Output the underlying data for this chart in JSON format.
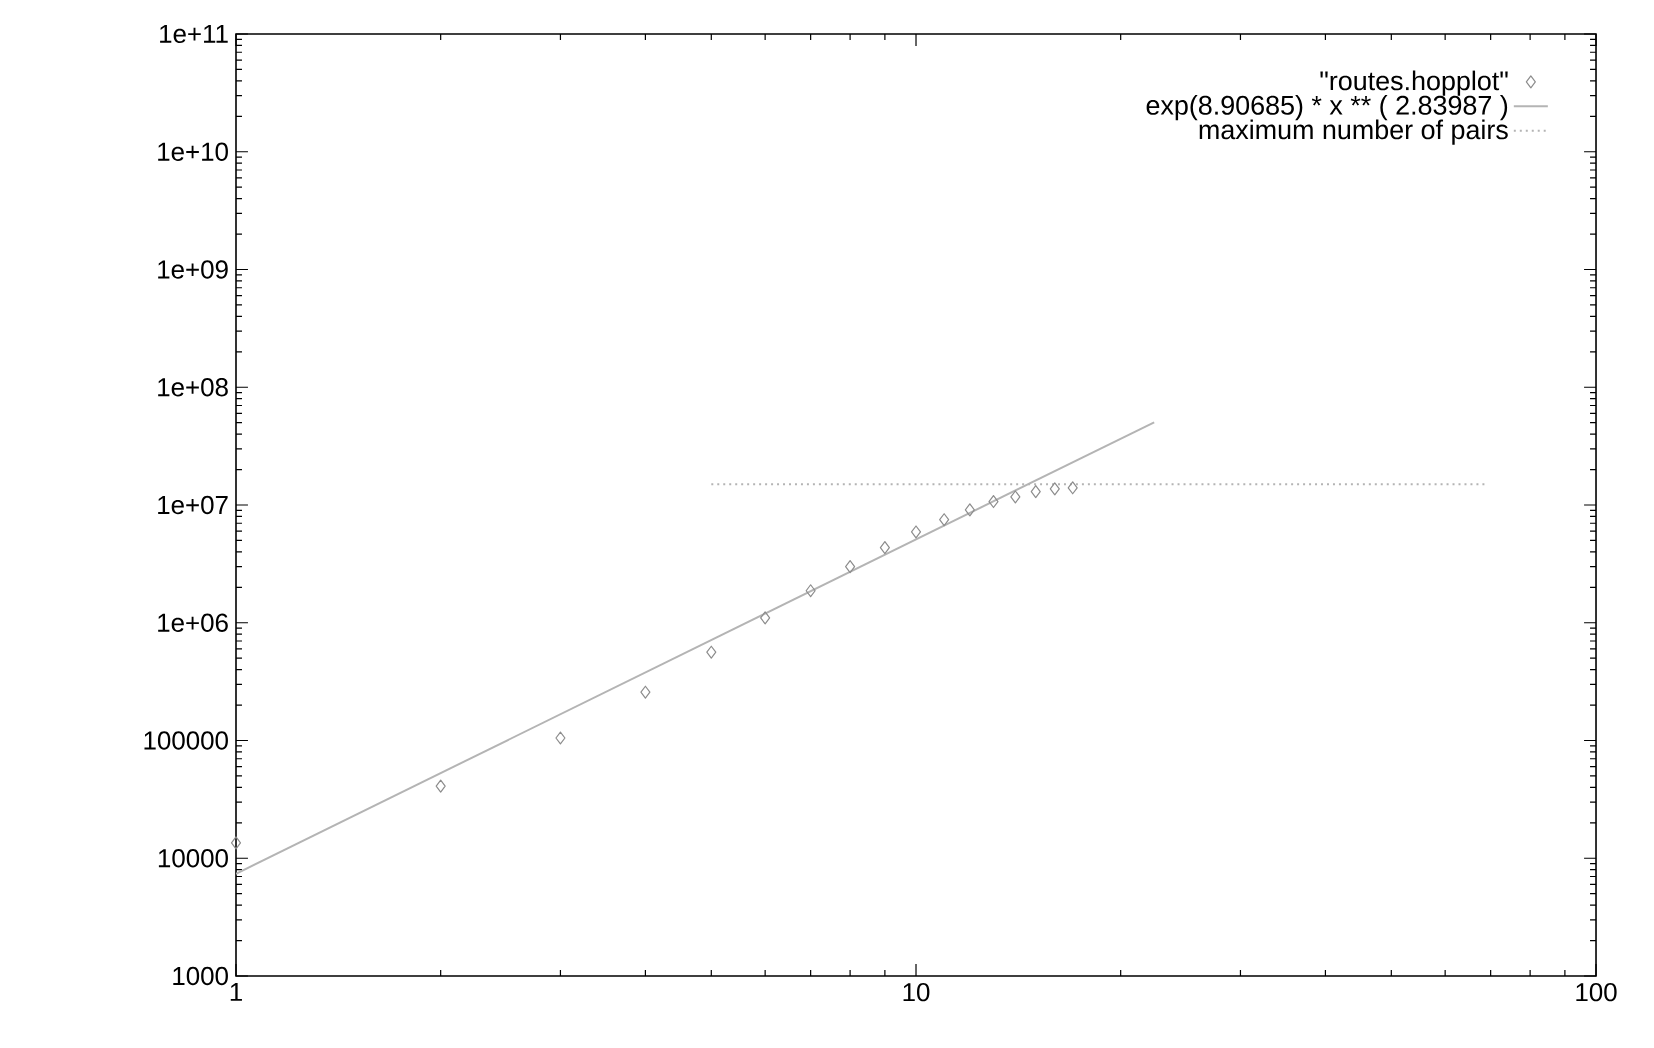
{
  "chart_data": {
    "type": "scatter",
    "log": "xy",
    "legend": "top right",
    "xlim": [
      1,
      100
    ],
    "xticks": [
      1,
      10,
      100
    ],
    "ylim": [
      1000,
      100000000000
    ],
    "yticks": [
      {
        "value": 1000,
        "label": "1000"
      },
      {
        "value": 10000,
        "label": "10000"
      },
      {
        "value": 100000,
        "label": "100000"
      },
      {
        "value": 1000000,
        "label": "1e+06"
      },
      {
        "value": 10000000,
        "label": "1e+07"
      },
      {
        "value": 100000000,
        "label": "1e+08"
      },
      {
        "value": 1000000000,
        "label": "1e+09"
      },
      {
        "value": 10000000000,
        "label": "1e+10"
      },
      {
        "value": 100000000000,
        "label": "1e+11"
      }
    ],
    "series": [
      {
        "name": "\"routes.hopplot\"",
        "marker": "diamond",
        "color": "#8c8c8c",
        "x": [
          1,
          2,
          3,
          4,
          5,
          6,
          7,
          8,
          9,
          10,
          11,
          12,
          13,
          14,
          15,
          16,
          17
        ],
        "values": [
          13500,
          41000,
          105000,
          257000,
          562000,
          1100000,
          1870000,
          3000000,
          4350000,
          5900000,
          7500000,
          9100000,
          10700000,
          11700000,
          13000000,
          13700000,
          14000000
        ]
      },
      {
        "name": "exp(8.90685)  * x ** (  2.83987 )",
        "type": "line",
        "line_style": "solid",
        "marker": "none",
        "color": "#b4b4b4",
        "x": [
          1,
          22.4
        ],
        "values": [
          7386,
          50400000
        ]
      },
      {
        "name": "maximum number of pairs",
        "type": "line",
        "line_style": "dotted",
        "marker": "none",
        "color": "#b4b4b4",
        "x": [
          5,
          69
        ],
        "values": [
          15000000,
          15000000
        ]
      }
    ]
  }
}
